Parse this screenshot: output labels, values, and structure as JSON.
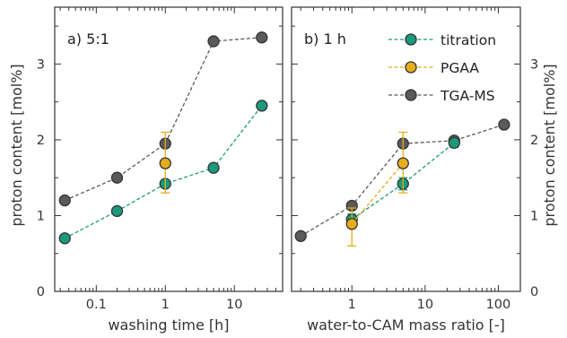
{
  "colors": {
    "titration": "#1a9a7a",
    "PGAA": "#e8ad1a",
    "TGA-MS": "#5a5a5a",
    "axis": "#333333"
  },
  "ylabel": "proton content [mol%]",
  "chart_data": [
    {
      "type": "scatter",
      "panel_label": "a) 5:1",
      "xlabel": "washing time [h]",
      "ylabel": "proton content [mol%]",
      "xscale": "log",
      "xlim": [
        0.025,
        50
      ],
      "ylim": [
        0,
        3.75
      ],
      "xticks": [
        0.1,
        1,
        10
      ],
      "xtick_labels": [
        "0.1",
        "1",
        "10"
      ],
      "yticks": [
        0,
        1,
        2,
        3
      ],
      "ytick_labels": [
        "0",
        "1",
        "2",
        "3"
      ],
      "series": [
        {
          "name": "TGA-MS",
          "x": [
            0.035,
            0.2,
            1,
            5,
            25
          ],
          "y": [
            1.2,
            1.5,
            1.95,
            3.3,
            3.35
          ]
        },
        {
          "name": "titration",
          "x": [
            0.035,
            0.2,
            1,
            5,
            25
          ],
          "y": [
            0.7,
            1.06,
            1.42,
            1.63,
            2.45
          ]
        },
        {
          "name": "PGAA",
          "x": [
            1
          ],
          "y": [
            1.69
          ],
          "yerr_low": [
            1.3
          ],
          "yerr_high": [
            2.1
          ]
        }
      ]
    },
    {
      "type": "scatter",
      "panel_label": "b) 1 h",
      "xlabel": "water-to-CAM mass ratio [-]",
      "ylabel": "proton content [mol%]",
      "xscale": "log",
      "xlim": [
        0.15,
        200
      ],
      "ylim": [
        0,
        3.75
      ],
      "xticks": [
        1,
        10,
        100
      ],
      "xtick_labels": [
        "1",
        "10",
        "100"
      ],
      "yticks": [
        0,
        1,
        2,
        3
      ],
      "ytick_labels": [
        "0",
        "1",
        "2",
        "3"
      ],
      "legend": [
        "titration",
        "PGAA",
        "TGA-MS"
      ],
      "legend_position": "top-right",
      "series": [
        {
          "name": "TGA-MS",
          "x": [
            0.2,
            1,
            5,
            25,
            120
          ],
          "y": [
            0.73,
            1.13,
            1.95,
            1.99,
            2.2
          ]
        },
        {
          "name": "titration",
          "x": [
            1,
            5,
            25
          ],
          "y": [
            0.95,
            1.42,
            1.96
          ],
          "yerr_low": [
            0.88,
            1.34,
            1.9
          ],
          "yerr_high": [
            1.02,
            1.5,
            2.02
          ]
        },
        {
          "name": "PGAA",
          "x": [
            1,
            5
          ],
          "y": [
            0.89,
            1.69
          ],
          "yerr_low": [
            0.6,
            1.3
          ],
          "yerr_high": [
            1.1,
            2.1
          ]
        }
      ]
    }
  ]
}
